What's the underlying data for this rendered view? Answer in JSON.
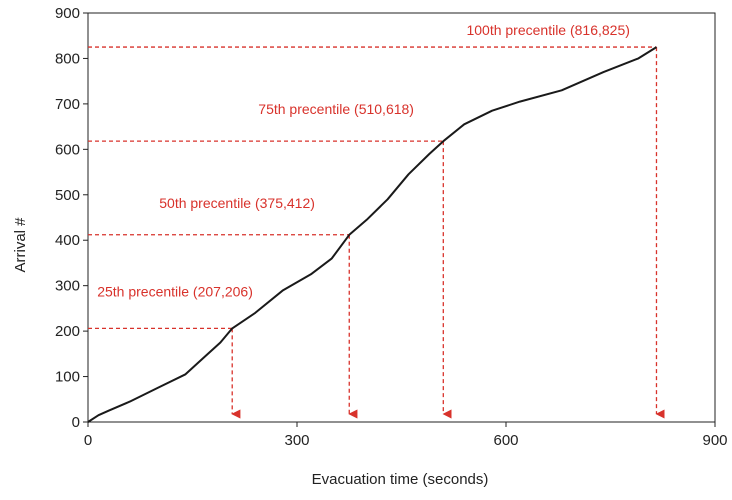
{
  "colors": {
    "curve": "#1a1a1a",
    "annotation": "#d8322b",
    "axis": "#222222",
    "text": "#222222"
  },
  "chart_data": {
    "type": "line",
    "title": "",
    "xlabel": "Evacuation time (seconds)",
    "ylabel": "Arrival #",
    "xlim": [
      0,
      900
    ],
    "ylim": [
      0,
      900
    ],
    "xticks": [
      0,
      300,
      600,
      900
    ],
    "yticks": [
      0,
      100,
      200,
      300,
      400,
      500,
      600,
      700,
      800,
      900
    ],
    "grid": false,
    "series": [
      {
        "x": [
          0,
          15,
          30,
          60,
          100,
          140,
          165,
          190,
          207,
          240,
          280,
          320,
          350,
          375,
          400,
          430,
          460,
          490,
          510,
          540,
          580,
          620,
          680,
          740,
          790,
          816
        ],
        "y": [
          0,
          15,
          25,
          45,
          75,
          105,
          140,
          175,
          206,
          240,
          290,
          325,
          360,
          412,
          445,
          490,
          545,
          590,
          618,
          655,
          685,
          705,
          730,
          770,
          800,
          825
        ]
      }
    ],
    "annotations": [
      {
        "label": "25th precentile (207,206)",
        "x": 207,
        "y": 206
      },
      {
        "label": "50th precentile (375,412)",
        "x": 375,
        "y": 412
      },
      {
        "label": "75th precentile (510,618)",
        "x": 510,
        "y": 618
      },
      {
        "label": "100th precentile (816,825)",
        "x": 816,
        "y": 825
      }
    ]
  }
}
